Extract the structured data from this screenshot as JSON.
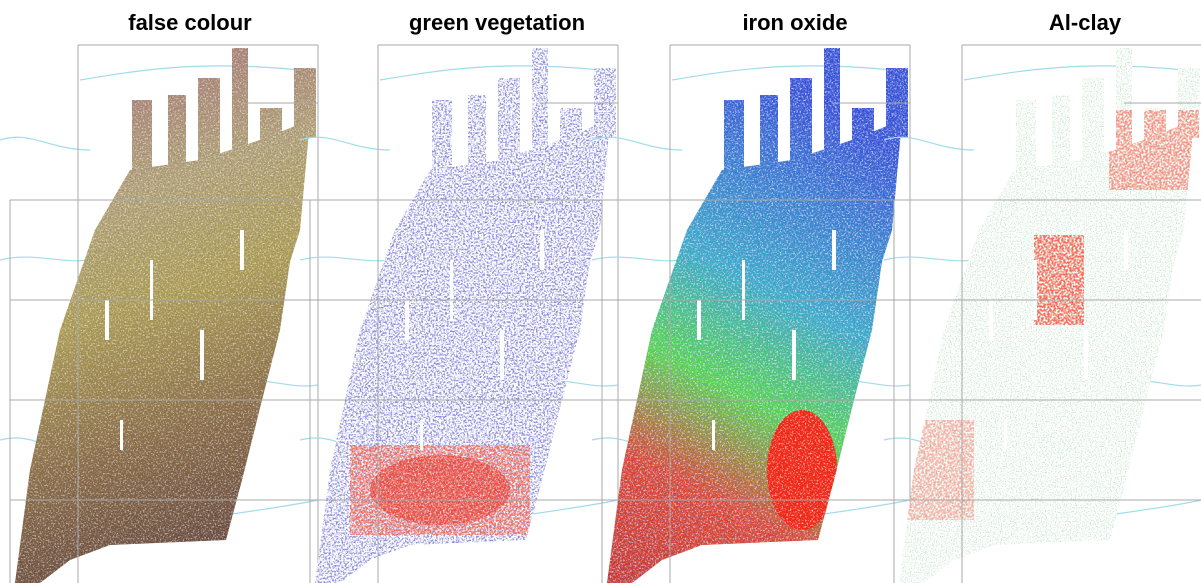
{
  "panels": [
    {
      "title": "false colour"
    },
    {
      "title": "green vegetation"
    },
    {
      "title": "iron oxide"
    },
    {
      "title": "Al-clay"
    }
  ]
}
